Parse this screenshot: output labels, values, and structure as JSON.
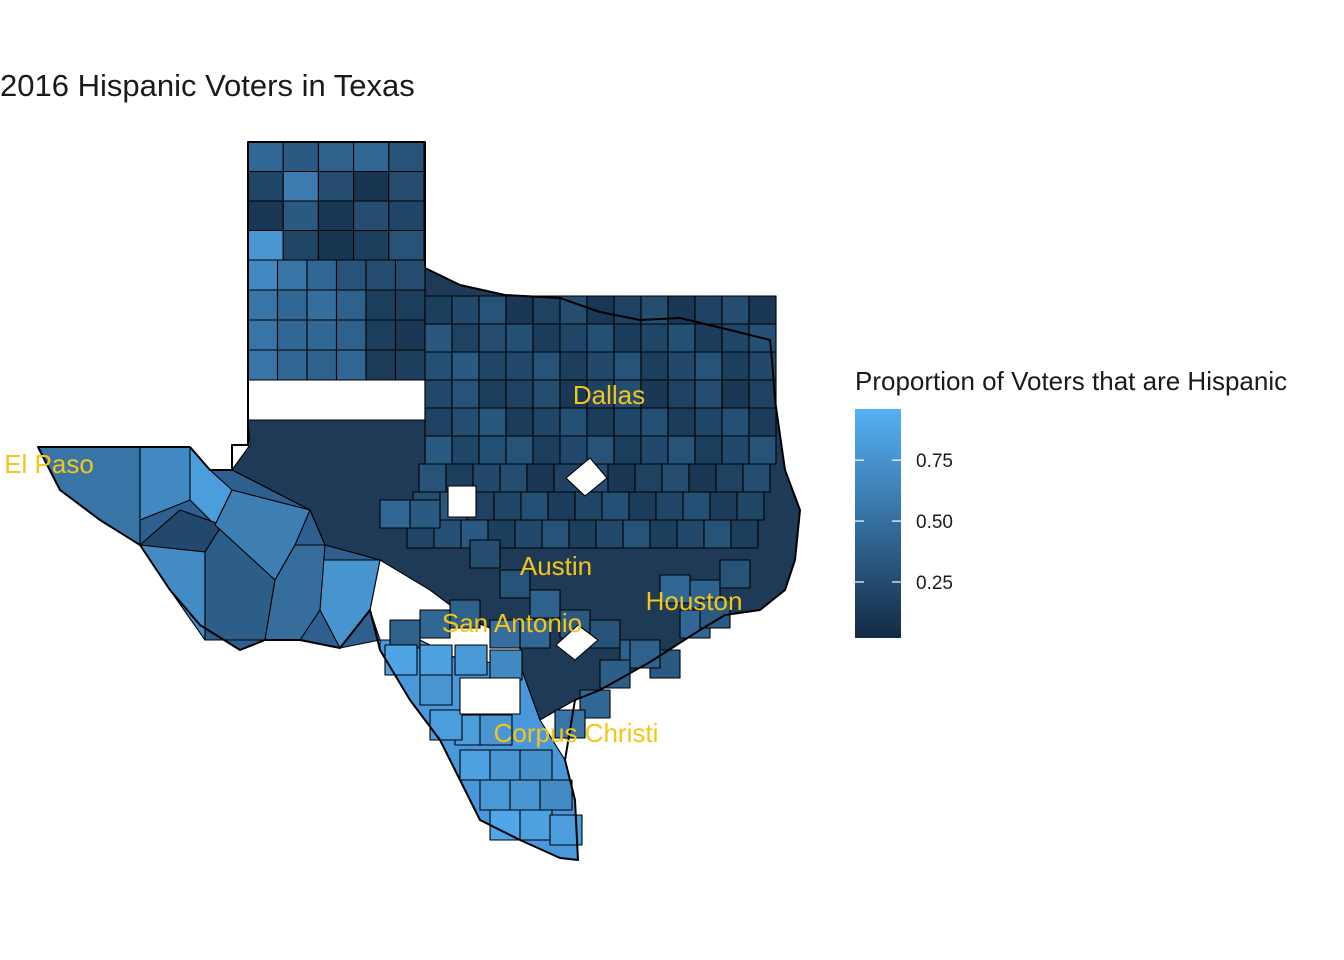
{
  "title": "2016 Hispanic Voters in Texas",
  "legend": {
    "title": "Proportion of Voters that are Hispanic",
    "ticks": [
      {
        "value": 0.75,
        "label": "0.75"
      },
      {
        "value": 0.5,
        "label": "0.50"
      },
      {
        "value": 0.25,
        "label": "0.25"
      }
    ],
    "range": [
      0.02,
      0.96
    ],
    "color_low": "#132B43",
    "color_high": "#56B1F7"
  },
  "cities": [
    {
      "name": "Dallas"
    },
    {
      "name": "El Paso"
    },
    {
      "name": "Austin"
    },
    {
      "name": "Houston"
    },
    {
      "name": "San Antonio"
    },
    {
      "name": "Corpus Christi"
    }
  ],
  "missing_value_color": "#ffffff"
}
